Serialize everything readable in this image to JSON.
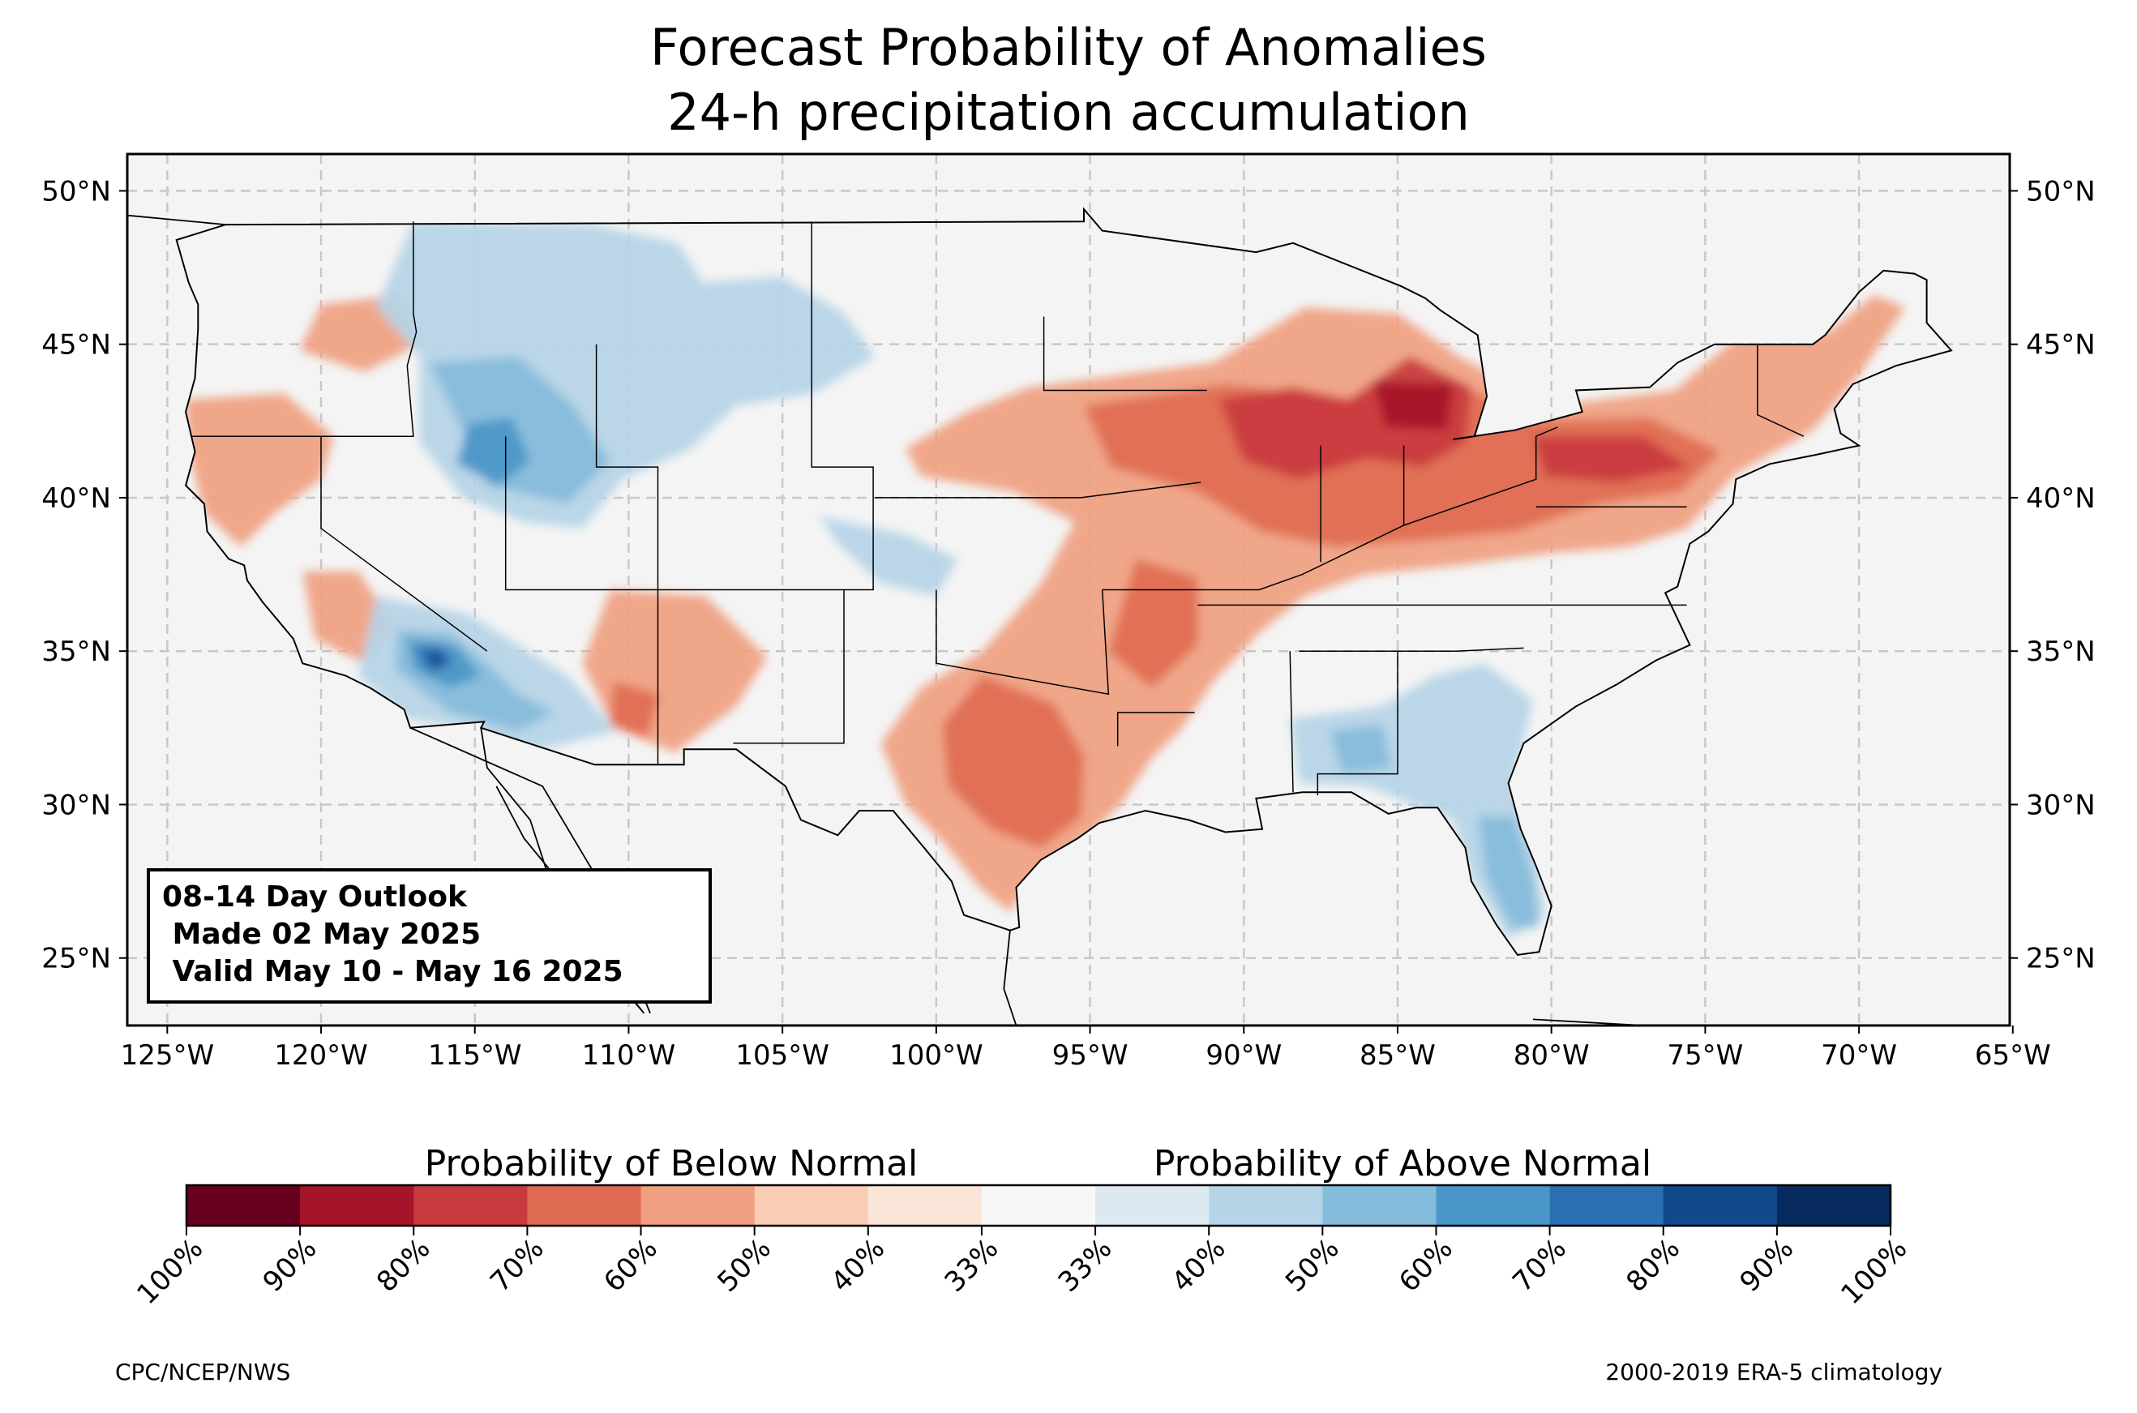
{
  "title": {
    "line1": "Forecast Probability of Anomalies",
    "line2": "24-h precipitation accumulation"
  },
  "info_box": {
    "line1": "08-14 Day Outlook",
    "line2": " Made 02 May 2025",
    "line3": " Valid May 10 - May 16 2025"
  },
  "map": {
    "lon_range": [
      -126.3,
      -65.1
    ],
    "lat_range": [
      22.8,
      51.2
    ],
    "lon_ticks": [
      "125°W",
      "120°W",
      "115°W",
      "110°W",
      "105°W",
      "100°W",
      "95°W",
      "90°W",
      "85°W",
      "80°W",
      "75°W",
      "70°W",
      "65°W"
    ],
    "lat_ticks": [
      "50°N",
      "45°N",
      "40°N",
      "35°N",
      "30°N",
      "25°N"
    ],
    "gridlines": true,
    "land_color": "#f4f4f4"
  },
  "colorbar": {
    "below_label": "Probability of Below Normal",
    "above_label": "Probability of Above Normal",
    "tick_labels": [
      "100%",
      "90%",
      "80%",
      "70%",
      "60%",
      "50%",
      "40%",
      "33%",
      "33%",
      "40%",
      "50%",
      "60%",
      "70%",
      "80%",
      "90%",
      "100%"
    ],
    "colors": [
      "#67001f",
      "#a51428",
      "#c93a3f",
      "#df6b53",
      "#f09f80",
      "#f9ccb4",
      "#fbe5d8",
      "#f7f7f7",
      "#dde9f1",
      "#b5d4e7",
      "#86bcdb",
      "#4a96c8",
      "#2a6fb2",
      "#12498a",
      "#072b5e"
    ]
  },
  "credits": {
    "left": "CPC/NCEP/NWS",
    "right": "2000-2019 ERA-5 climatology"
  }
}
